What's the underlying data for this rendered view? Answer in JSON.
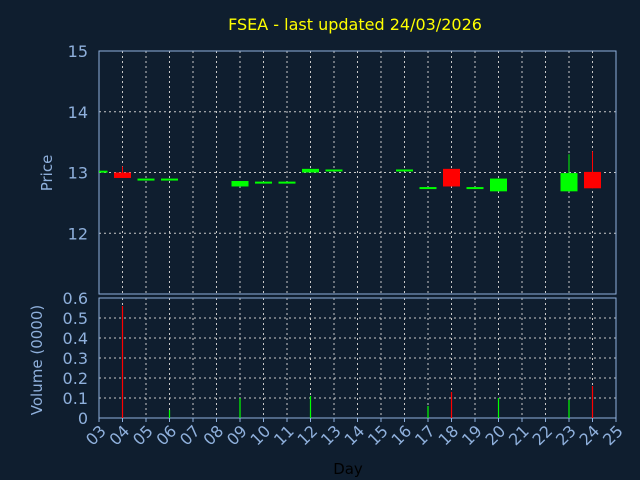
{
  "chart_data": [
    {
      "type": "candlestick",
      "title": "FSEA - last updated 24/03/2026",
      "ylabel": "Price",
      "ylim": [
        11,
        15
      ],
      "yticks": [
        "12",
        "13",
        "14",
        "15"
      ],
      "grid": true,
      "candles": [
        {
          "day": "03",
          "open": 13.03,
          "high": 13.03,
          "low": 13.03,
          "close": 13.03
        },
        {
          "day": "04",
          "open": 13.0,
          "high": 13.1,
          "low": 12.91,
          "close": 12.91
        },
        {
          "day": "05",
          "open": 12.9,
          "high": 12.9,
          "low": 12.9,
          "close": 12.9
        },
        {
          "day": "06",
          "open": 12.9,
          "high": 12.9,
          "low": 12.9,
          "close": 12.9
        },
        {
          "day": "09",
          "open": 12.77,
          "high": 12.86,
          "low": 12.77,
          "close": 12.86
        },
        {
          "day": "10",
          "open": 12.85,
          "high": 12.85,
          "low": 12.85,
          "close": 12.85
        },
        {
          "day": "11",
          "open": 12.85,
          "high": 12.85,
          "low": 12.85,
          "close": 12.85
        },
        {
          "day": "12",
          "open": 13.0,
          "high": 13.06,
          "low": 13.0,
          "close": 13.06
        },
        {
          "day": "13",
          "open": 13.05,
          "high": 13.05,
          "low": 13.05,
          "close": 13.05
        },
        {
          "day": "16",
          "open": 13.05,
          "high": 13.05,
          "low": 13.05,
          "close": 13.05
        },
        {
          "day": "17",
          "open": 12.76,
          "high": 12.76,
          "low": 12.76,
          "close": 12.76
        },
        {
          "day": "18",
          "open": 13.06,
          "high": 13.06,
          "low": 12.77,
          "close": 12.77
        },
        {
          "day": "19",
          "open": 12.76,
          "high": 12.76,
          "low": 12.76,
          "close": 12.76
        },
        {
          "day": "20",
          "open": 12.69,
          "high": 12.9,
          "low": 12.69,
          "close": 12.9
        },
        {
          "day": "23",
          "open": 12.69,
          "high": 13.3,
          "low": 12.69,
          "close": 12.99
        },
        {
          "day": "24",
          "open": 13.01,
          "high": 13.35,
          "low": 12.74,
          "close": 12.74
        }
      ]
    },
    {
      "type": "bar",
      "xlabel": "Day",
      "ylabel": "Volume (0000)",
      "ylim": [
        0,
        0.6
      ],
      "yticks": [
        "0",
        "0.1",
        "0.2",
        "0.3",
        "0.4",
        "0.5",
        "0.6"
      ],
      "xticks": [
        "03",
        "04",
        "05",
        "06",
        "07",
        "08",
        "09",
        "10",
        "11",
        "12",
        "13",
        "14",
        "15",
        "16",
        "17",
        "18",
        "19",
        "20",
        "21",
        "22",
        "23",
        "24",
        "25"
      ],
      "grid": true,
      "bars": [
        {
          "day": "04",
          "value": 0.56,
          "direction": "down"
        },
        {
          "day": "06",
          "value": 0.04,
          "direction": "up"
        },
        {
          "day": "09",
          "value": 0.1,
          "direction": "up"
        },
        {
          "day": "12",
          "value": 0.11,
          "direction": "up"
        },
        {
          "day": "17",
          "value": 0.06,
          "direction": "up"
        },
        {
          "day": "18",
          "value": 0.13,
          "direction": "down"
        },
        {
          "day": "20",
          "value": 0.1,
          "direction": "up"
        },
        {
          "day": "23",
          "value": 0.09,
          "direction": "up"
        },
        {
          "day": "24",
          "value": 0.16,
          "direction": "down"
        }
      ]
    }
  ],
  "colors": {
    "background": "#0f1e2f",
    "axis": "#8fb0dc",
    "title": "#ffff00",
    "up": "#00ff00",
    "down": "#ff0000",
    "grid": "#c8c8c8",
    "xlabel": "#000000"
  }
}
